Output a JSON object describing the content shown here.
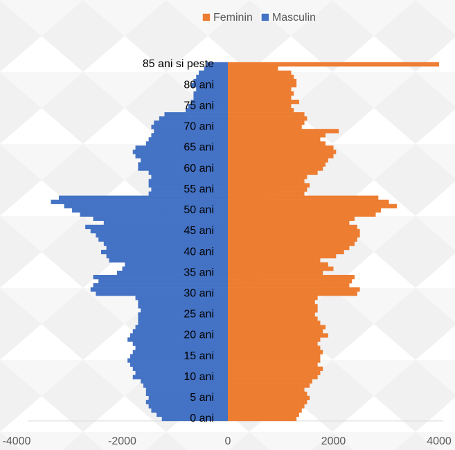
{
  "chart_data": {
    "type": "pyramid",
    "categories": [
      "0 ani",
      null,
      null,
      null,
      null,
      "5 ani",
      null,
      null,
      null,
      null,
      "10 ani",
      null,
      null,
      null,
      null,
      "15 ani",
      null,
      null,
      null,
      null,
      "20 ani",
      null,
      null,
      null,
      null,
      "25 ani",
      null,
      null,
      null,
      null,
      "30 ani",
      null,
      null,
      null,
      null,
      "35 ani",
      null,
      null,
      null,
      null,
      "40 ani",
      null,
      null,
      null,
      null,
      "45 ani",
      null,
      null,
      null,
      null,
      "50 ani",
      null,
      null,
      null,
      null,
      "55 ani",
      null,
      null,
      null,
      null,
      "60 ani",
      null,
      null,
      null,
      null,
      "65 ani",
      null,
      null,
      null,
      null,
      "70 ani",
      null,
      null,
      null,
      null,
      "75 ani",
      null,
      null,
      null,
      null,
      "80 ani",
      null,
      null,
      null,
      null,
      "85 ani si peste"
    ],
    "series": [
      {
        "name": "Feminin",
        "color": "#ed7d31",
        "values": [
          1300,
          1350,
          1400,
          1450,
          1500,
          1550,
          1500,
          1450,
          1550,
          1600,
          1700,
          1750,
          1800,
          1700,
          1750,
          1750,
          1800,
          1750,
          1700,
          1750,
          1900,
          1800,
          1850,
          1750,
          1700,
          1650,
          1700,
          1700,
          1650,
          1700,
          2450,
          2500,
          2300,
          2350,
          2400,
          1800,
          2000,
          1900,
          1750,
          2050,
          2200,
          2300,
          2400,
          2450,
          2500,
          2500,
          2450,
          2300,
          2400,
          2800,
          2900,
          3200,
          3050,
          2850,
          1450,
          1500,
          1550,
          1450,
          1500,
          1700,
          1800,
          1850,
          1900,
          2000,
          2050,
          2000,
          1850,
          1750,
          1850,
          2100,
          1400,
          1450,
          1500,
          1450,
          1250,
          1200,
          1350,
          1200,
          1250,
          1200,
          1300,
          1300,
          1250,
          1200,
          950,
          4000
        ]
      },
      {
        "name": "Masculin",
        "color": "#4472c4",
        "values": [
          -1250,
          -1350,
          -1450,
          -1500,
          -1550,
          -1500,
          -1550,
          -1550,
          -1600,
          -1650,
          -1800,
          -1750,
          -1800,
          -1850,
          -1900,
          -1850,
          -1800,
          -1750,
          -1800,
          -1900,
          -1850,
          -1800,
          -1750,
          -1700,
          -1700,
          -1700,
          -1650,
          -1700,
          -1700,
          -1750,
          -2500,
          -2600,
          -2550,
          -2450,
          -2550,
          -2100,
          -2000,
          -1950,
          -2250,
          -2300,
          -2400,
          -2300,
          -2350,
          -2450,
          -2500,
          -2600,
          -2700,
          -2350,
          -2550,
          -2800,
          -2950,
          -3100,
          -3350,
          -3200,
          -1500,
          -1450,
          -1500,
          -1500,
          -1450,
          -1500,
          -1700,
          -1700,
          -1650,
          -1750,
          -1800,
          -1750,
          -1550,
          -1500,
          -1450,
          -1400,
          -1450,
          -1400,
          -1300,
          -1200,
          -800,
          -750,
          -700,
          -650,
          -650,
          -600,
          -700,
          -650,
          -600,
          -550,
          -450,
          -400
        ]
      }
    ],
    "xlim": [
      -4000,
      4000
    ],
    "xticks": [
      -4000,
      -2000,
      0,
      2000,
      4000
    ],
    "legend": "top"
  }
}
